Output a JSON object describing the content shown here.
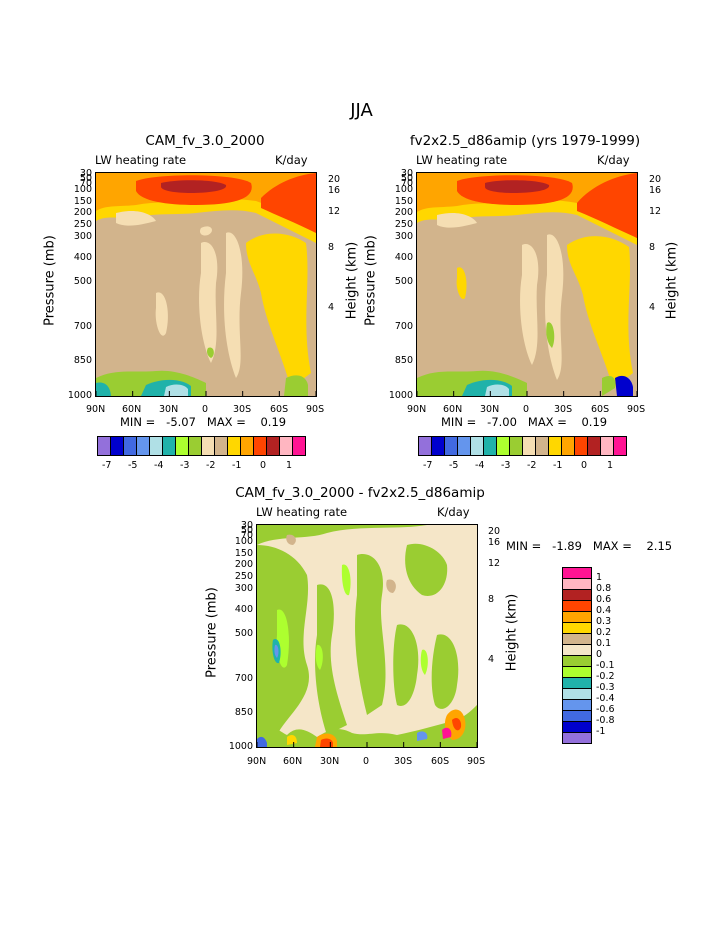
{
  "main_title": "JJA",
  "colors": {
    "c_m7": "#9370db",
    "c_m6": "#0000cd",
    "c_m5": "#4169e1",
    "c_m45": "#6495ed",
    "c_m4": "#b0e0e6",
    "c_m35": "#20b2aa",
    "c_m3": "#adff2f",
    "c_m25": "#9acd32",
    "c_m2": "#f5deb3",
    "c_m15": "#d2b48c",
    "c_m1": "#ffd700",
    "c_m05": "#ffa500",
    "c_0": "#ff4500",
    "c_05": "#b22222",
    "c_1": "#ffb6c1",
    "c_max": "#ff1493",
    "d_m1": "#9370db",
    "d_m08": "#0000cd",
    "d_m06": "#4169e1",
    "d_m04": "#6495ed",
    "d_m03": "#b0e0e6",
    "d_m02": "#20b2aa",
    "d_m01": "#9acd32",
    "d_0": "#adff2f",
    "d_01": "#f5e6c8",
    "d_02": "#d2b48c",
    "d_03": "#ffd700",
    "d_04": "#ffa500",
    "d_06": "#ff4500",
    "d_08": "#b22222",
    "d_1": "#ffb6c1",
    "d_max": "#ff1493"
  },
  "chart_data": [
    {
      "type": "heatmap",
      "title": "CAM_fv_3.0_2000",
      "left_label": "LW heating rate",
      "right_label": "K/day",
      "ylabel": "Pressure (mb)",
      "y2label": "Height (km)",
      "x_ticks": [
        "90N",
        "60N",
        "30N",
        "0",
        "30S",
        "60S",
        "90S"
      ],
      "y_ticks": [
        "30",
        "50",
        "70",
        "100",
        "150",
        "200",
        "250",
        "300",
        "400",
        "500",
        "700",
        "850",
        "1000"
      ],
      "y2_ticks": [
        "20",
        "16",
        "12",
        "8",
        "4"
      ],
      "stats": "MIN =   -5.07   MAX =    0.19",
      "colorbar_labels": [
        "-7",
        "-5",
        "-4",
        "-3",
        "-2",
        "-1",
        "0",
        "1"
      ]
    },
    {
      "type": "heatmap",
      "title": "fv2x2.5_d86amip (yrs 1979-1999)",
      "left_label": "LW heating rate",
      "right_label": "K/day",
      "ylabel": "Pressure (mb)",
      "y2label": "Height (km)",
      "x_ticks": [
        "90N",
        "60N",
        "30N",
        "0",
        "30S",
        "60S",
        "90S"
      ],
      "y_ticks": [
        "30",
        "50",
        "70",
        "100",
        "150",
        "200",
        "250",
        "300",
        "400",
        "500",
        "700",
        "850",
        "1000"
      ],
      "y2_ticks": [
        "20",
        "16",
        "12",
        "8",
        "4"
      ],
      "stats": "MIN =   -7.00   MAX =    0.19",
      "colorbar_labels": [
        "-7",
        "-5",
        "-4",
        "-3",
        "-2",
        "-1",
        "0",
        "1"
      ]
    },
    {
      "type": "heatmap",
      "title": "CAM_fv_3.0_2000 - fv2x2.5_d86amip",
      "left_label": "LW heating rate",
      "right_label": "K/day",
      "ylabel": "Pressure (mb)",
      "y2label": "Height (km)",
      "x_ticks": [
        "90N",
        "60N",
        "30N",
        "0",
        "30S",
        "60S",
        "90S"
      ],
      "y_ticks": [
        "30",
        "50",
        "70",
        "100",
        "150",
        "200",
        "250",
        "300",
        "400",
        "500",
        "700",
        "850",
        "1000"
      ],
      "y2_ticks": [
        "20",
        "16",
        "12",
        "8",
        "4"
      ],
      "stats": "MIN =   -1.89   MAX =    2.15",
      "colorbar_labels": [
        "1",
        "0.8",
        "0.6",
        "0.4",
        "0.3",
        "0.2",
        "0.1",
        "0",
        "-0.1",
        "-0.2",
        "-0.3",
        "-0.4",
        "-0.6",
        "-0.8",
        "-1"
      ]
    }
  ]
}
